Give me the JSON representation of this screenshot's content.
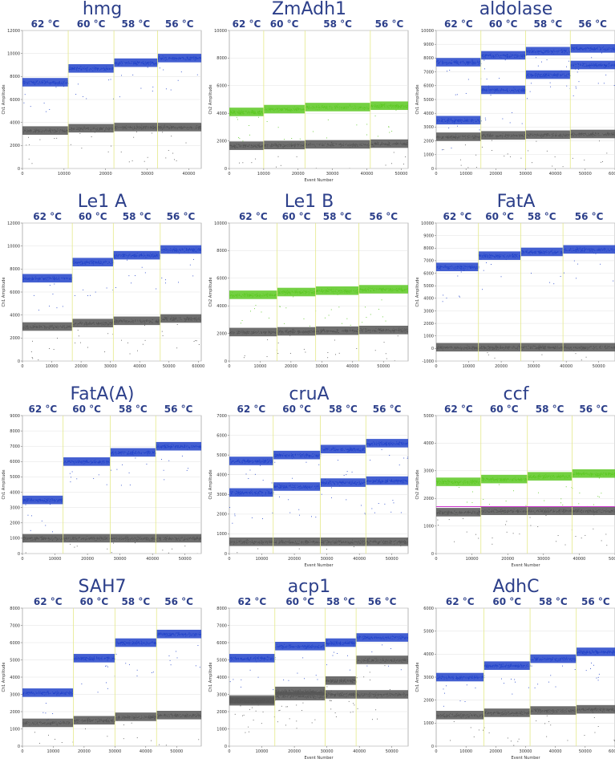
{
  "colors": {
    "blue": "#2243c9",
    "green": "#5cc822",
    "grey": "#555555",
    "magenta": "#cc33cc",
    "divider": "#e4e98a",
    "title": "#2c3f8a",
    "plot_bg": "#ffffff"
  },
  "chart_data": [
    {
      "type": "scatter",
      "title": "hmg",
      "temps": [
        "62 °C",
        "60 °C",
        "58 °C",
        "56 °C"
      ],
      "ylabel": "Ch1 Amplitude",
      "xlabel": "",
      "xlim": [
        0,
        43000
      ],
      "ylim": [
        0,
        12000
      ],
      "xticks": [
        0,
        10000,
        20000,
        30000,
        40000
      ],
      "yticks": [
        0,
        2000,
        4000,
        6000,
        8000,
        10000,
        12000
      ],
      "boundaries": [
        11000,
        22000,
        32500
      ],
      "series": [
        {
          "color": "blue",
          "levels": [
            7500,
            8700,
            9200,
            9600
          ]
        },
        {
          "color": "grey",
          "levels": [
            3300,
            3500,
            3600,
            3600
          ]
        }
      ]
    },
    {
      "type": "scatter",
      "title": "ZmAdh1",
      "temps": [
        "62 °C",
        "60 °C",
        "58 °C",
        "56 °C"
      ],
      "ylabel": "Ch2 Amplitude",
      "xlabel": "Event Number",
      "xlim": [
        0,
        52000
      ],
      "ylim": [
        0,
        10000
      ],
      "xticks": [
        0,
        10000,
        20000,
        30000,
        40000,
        50000
      ],
      "yticks": [
        0,
        2000,
        4000,
        6000,
        8000,
        10000
      ],
      "boundaries": [
        10000,
        22000,
        41000
      ],
      "series": [
        {
          "color": "green",
          "levels": [
            4100,
            4300,
            4450,
            4550
          ]
        },
        {
          "color": "grey",
          "levels": [
            1650,
            1700,
            1750,
            1800
          ]
        }
      ]
    },
    {
      "type": "scatter",
      "title": "aldolase",
      "temps": [
        "62 °C",
        "60 °C",
        "58 °C",
        "56 °C"
      ],
      "ylabel": "Ch1 Amplitude",
      "xlabel": "",
      "xlim": [
        0,
        60000
      ],
      "ylim": [
        0,
        10000
      ],
      "xticks": [
        0,
        10000,
        20000,
        30000,
        40000,
        50000,
        60000
      ],
      "yticks": [
        0,
        1000,
        2000,
        3000,
        4000,
        5000,
        6000,
        7000,
        8000,
        9000,
        10000
      ],
      "boundaries": [
        15000,
        30000,
        45000
      ],
      "series": [
        {
          "color": "blue",
          "levels": [
            7700,
            8200,
            8500,
            8700
          ]
        },
        {
          "color": "blue",
          "levels": [
            3500,
            5700,
            6800,
            7500
          ]
        },
        {
          "color": "grey",
          "levels": [
            2300,
            2400,
            2450,
            2500
          ]
        }
      ]
    },
    {
      "type": "scatter",
      "title": "Le1 A",
      "temps": [
        "62 °C",
        "60 °C",
        "58 °C",
        "56 °C"
      ],
      "ylabel": "Ch1 Amplitude",
      "xlabel": "",
      "xlim": [
        0,
        61000
      ],
      "ylim": [
        0,
        12000
      ],
      "xticks": [
        0,
        10000,
        20000,
        30000,
        40000,
        50000,
        60000
      ],
      "yticks": [
        0,
        2000,
        4000,
        6000,
        8000,
        10000,
        12000
      ],
      "boundaries": [
        17000,
        31000,
        47000
      ],
      "series": [
        {
          "color": "blue",
          "levels": [
            7200,
            8600,
            9200,
            9700
          ]
        },
        {
          "color": "grey",
          "levels": [
            3000,
            3300,
            3500,
            3700
          ]
        }
      ]
    },
    {
      "type": "scatter",
      "title": "Le1 B",
      "temps": [
        "62 °C",
        "60 °C",
        "58 °C",
        "56 °C"
      ],
      "ylabel": "Ch2 Amplitude",
      "xlabel": "",
      "xlim": [
        0,
        58000
      ],
      "ylim": [
        0,
        10000
      ],
      "xticks": [
        0,
        10000,
        20000,
        30000,
        40000,
        50000
      ],
      "yticks": [
        0,
        2000,
        4000,
        6000,
        8000,
        10000
      ],
      "boundaries": [
        15500,
        28000,
        42000
      ],
      "series": [
        {
          "color": "green",
          "levels": [
            4800,
            5000,
            5100,
            5200
          ]
        },
        {
          "color": "grey",
          "levels": [
            2100,
            2150,
            2200,
            2250
          ]
        }
      ]
    },
    {
      "type": "scatter",
      "title": "FatA",
      "temps": [
        "62 °C",
        "60 °C",
        "58 °C",
        "56 °C"
      ],
      "ylabel": "Ch1 Amplitude",
      "xlabel": "",
      "xlim": [
        0,
        55000
      ],
      "ylim": [
        -1000,
        10000
      ],
      "xticks": [
        0,
        10000,
        20000,
        30000,
        40000,
        50000
      ],
      "yticks": [
        -1000,
        0,
        1000,
        2000,
        3000,
        4000,
        5000,
        6000,
        7000,
        8000,
        9000,
        10000
      ],
      "boundaries": [
        13000,
        26000,
        39000
      ],
      "series": [
        {
          "color": "blue",
          "levels": [
            6500,
            7400,
            7700,
            7900
          ]
        },
        {
          "color": "grey",
          "levels": [
            100,
            100,
            100,
            100
          ]
        }
      ]
    },
    {
      "type": "scatter",
      "title": "FatA(A)",
      "temps": [
        "62 °C",
        "60 °C",
        "58 °C",
        "56 °C"
      ],
      "ylabel": "Ch1 Amplitude",
      "xlabel": "",
      "xlim": [
        0,
        55000
      ],
      "ylim": [
        0,
        9000
      ],
      "xticks": [
        0,
        10000,
        20000,
        30000,
        40000,
        50000
      ],
      "yticks": [
        0,
        1000,
        2000,
        3000,
        4000,
        5000,
        6000,
        7000,
        8000,
        9000
      ],
      "boundaries": [
        12500,
        27000,
        41000
      ],
      "series": [
        {
          "color": "blue",
          "levels": [
            3500,
            6000,
            6600,
            7000
          ]
        },
        {
          "color": "grey",
          "levels": [
            1000,
            1000,
            1000,
            1000
          ]
        }
      ]
    },
    {
      "type": "scatter",
      "title": "cruA",
      "temps": [
        "62 °C",
        "60 °C",
        "58 °C",
        "56 °C"
      ],
      "ylabel": "Ch1 Amplitude",
      "xlabel": "Event Number",
      "xlim": [
        0,
        55000
      ],
      "ylim": [
        0,
        7000
      ],
      "xticks": [
        0,
        10000,
        20000,
        30000,
        40000,
        50000
      ],
      "yticks": [
        0,
        1000,
        2000,
        3000,
        4000,
        5000,
        6000,
        7000
      ],
      "boundaries": [
        13500,
        28000,
        42000
      ],
      "series": [
        {
          "color": "blue",
          "levels": [
            4700,
            5000,
            5300,
            5600
          ]
        },
        {
          "color": "blue",
          "levels": [
            3100,
            3400,
            3600,
            3700
          ]
        },
        {
          "color": "grey",
          "levels": [
            600,
            600,
            600,
            600
          ]
        }
      ]
    },
    {
      "type": "scatter",
      "title": "ccf",
      "temps": [
        "62 °C",
        "60 °C",
        "58 °C",
        "56 °C"
      ],
      "ylabel": "Ch2 Amplitude",
      "xlabel": "Event Number",
      "xlim": [
        0,
        50000
      ],
      "ylim": [
        0,
        5000
      ],
      "xticks": [
        0,
        10000,
        20000,
        30000,
        40000,
        50000
      ],
      "yticks": [
        0,
        1000,
        2000,
        3000,
        4000,
        5000
      ],
      "boundaries": [
        12500,
        25500,
        38000
      ],
      "threshold": 1700,
      "series": [
        {
          "color": "green",
          "levels": [
            2600,
            2700,
            2800,
            2900
          ]
        },
        {
          "color": "grey",
          "levels": [
            1500,
            1550,
            1550,
            1550
          ]
        }
      ]
    },
    {
      "type": "scatter",
      "title": "SAH7",
      "temps": [
        "62 °C",
        "60 °C",
        "58 °C",
        "56 °C"
      ],
      "ylabel": "Ch1 Amplitude",
      "xlabel": "",
      "xlim": [
        0,
        58000
      ],
      "ylim": [
        0,
        8000
      ],
      "xticks": [
        0,
        10000,
        20000,
        30000,
        40000,
        50000
      ],
      "yticks": [
        0,
        1000,
        2000,
        3000,
        4000,
        5000,
        6000,
        7000,
        8000
      ],
      "boundaries": [
        16500,
        30000,
        43500
      ],
      "series": [
        {
          "color": "blue",
          "levels": [
            3100,
            5100,
            6000,
            6500
          ]
        },
        {
          "color": "grey",
          "levels": [
            1350,
            1500,
            1700,
            1800
          ]
        }
      ]
    },
    {
      "type": "scatter",
      "title": "acp1",
      "temps": [
        "62 °C",
        "60 °C",
        "58 °C",
        "56 °C"
      ],
      "ylabel": "Ch1 Amplitude",
      "xlabel": "Event Number",
      "xlim": [
        0,
        55000
      ],
      "ylim": [
        0,
        8000
      ],
      "xticks": [
        0,
        10000,
        20000,
        30000,
        40000,
        50000
      ],
      "yticks": [
        0,
        1000,
        2000,
        3000,
        4000,
        5000,
        6000,
        7000,
        8000
      ],
      "boundaries": [
        14000,
        29500,
        39000
      ],
      "series": [
        {
          "color": "blue",
          "levels": [
            5100,
            5800,
            6000,
            6300
          ]
        },
        {
          "color": "grey",
          "levels": [
            2700,
            3200,
            3800,
            5000
          ]
        },
        {
          "color": "grey",
          "levels": [
            2600,
            2900,
            3000,
            3000
          ]
        }
      ]
    },
    {
      "type": "scatter",
      "title": "AdhC",
      "temps": [
        "62 °C",
        "60 °C",
        "58 °C",
        "56 °C"
      ],
      "ylabel": "Ch1 Amplitude",
      "xlabel": "Event Number",
      "xlim": [
        0,
        60000
      ],
      "ylim": [
        0,
        6000
      ],
      "xticks": [
        0,
        10000,
        20000,
        30000,
        40000,
        50000,
        60000
      ],
      "yticks": [
        0,
        1000,
        2000,
        3000,
        4000,
        5000,
        6000
      ],
      "boundaries": [
        16000,
        31500,
        47000
      ],
      "series": [
        {
          "color": "blue",
          "levels": [
            3000,
            3500,
            3800,
            4100
          ]
        },
        {
          "color": "grey",
          "levels": [
            1350,
            1450,
            1550,
            1600
          ]
        }
      ]
    }
  ]
}
